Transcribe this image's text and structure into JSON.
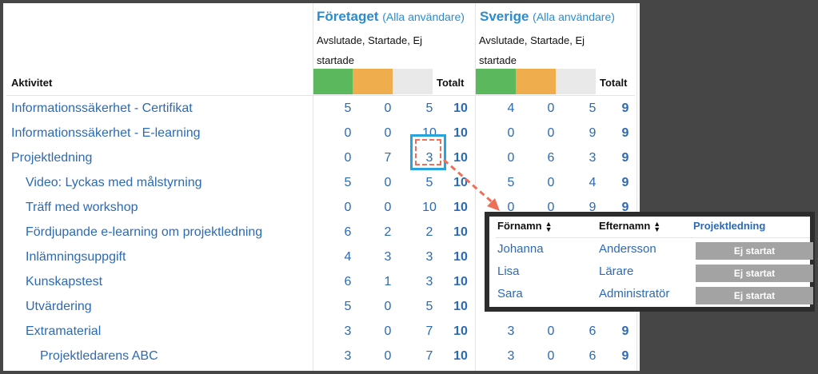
{
  "columns_header": {
    "activity": "Aktivitet",
    "total": "Totalt",
    "status_label": "Avslutade, Startade, Ej startade"
  },
  "groups": [
    {
      "title": "Företaget",
      "subtitle": "(Alla användare)"
    },
    {
      "title": "Sverige",
      "subtitle": "(Alla användare)"
    }
  ],
  "colors": {
    "finished": "#5cb85c",
    "started": "#f0ad4e",
    "not_started": "#e9e9e9",
    "link": "#2c6ab3",
    "header_title": "#2a8ccf",
    "highlight": "#28a3dc",
    "dashed": "#ef6e57"
  },
  "rows": [
    {
      "name": "Informationssäkerhet - Certifikat",
      "indent": 0,
      "c": [
        "5",
        "0",
        "5",
        "10"
      ],
      "s": [
        "4",
        "0",
        "5",
        "9"
      ]
    },
    {
      "name": "Informationssäkerhet - E-learning",
      "indent": 0,
      "c": [
        "0",
        "0",
        "10",
        "10"
      ],
      "s": [
        "0",
        "0",
        "9",
        "9"
      ]
    },
    {
      "name": "Projektledning",
      "indent": 0,
      "c": [
        "0",
        "7",
        "3",
        "10"
      ],
      "s": [
        "0",
        "6",
        "3",
        "9"
      ]
    },
    {
      "name": "Video: Lyckas med målstyrning",
      "indent": 1,
      "c": [
        "5",
        "0",
        "5",
        "10"
      ],
      "s": [
        "5",
        "0",
        "4",
        "9"
      ]
    },
    {
      "name": "Träff med workshop",
      "indent": 1,
      "c": [
        "0",
        "0",
        "10",
        "10"
      ],
      "s": [
        "0",
        "0",
        "9",
        "9"
      ]
    },
    {
      "name": "Fördjupande e-learning om projektledning",
      "indent": 1,
      "c": [
        "6",
        "2",
        "2",
        "10"
      ],
      "s": [
        "",
        "",
        "",
        ""
      ]
    },
    {
      "name": "Inlämningsuppgift",
      "indent": 1,
      "c": [
        "4",
        "3",
        "3",
        "10"
      ],
      "s": [
        "",
        "",
        "",
        ""
      ]
    },
    {
      "name": "Kunskapstest",
      "indent": 1,
      "c": [
        "6",
        "1",
        "3",
        "10"
      ],
      "s": [
        "",
        "",
        "",
        ""
      ]
    },
    {
      "name": "Utvärdering",
      "indent": 1,
      "c": [
        "5",
        "0",
        "5",
        "10"
      ],
      "s": [
        "",
        "",
        "",
        ""
      ]
    },
    {
      "name": "Extramaterial",
      "indent": 1,
      "c": [
        "3",
        "0",
        "7",
        "10"
      ],
      "s": [
        "3",
        "0",
        "6",
        "9"
      ]
    },
    {
      "name": "Projektledarens ABC",
      "indent": 2,
      "c": [
        "3",
        "0",
        "7",
        "10"
      ],
      "s": [
        "3",
        "0",
        "6",
        "9"
      ]
    }
  ],
  "popup": {
    "col_first": "Förnamn",
    "col_last": "Efternamn",
    "col_activity": "Projektledning",
    "people": [
      {
        "first": "Johanna",
        "last": "Andersson",
        "status": "Ej startat"
      },
      {
        "first": "Lisa",
        "last": "Lärare",
        "status": "Ej startat"
      },
      {
        "first": "Sara",
        "last": "Administratör",
        "status": "Ej startat"
      }
    ]
  }
}
